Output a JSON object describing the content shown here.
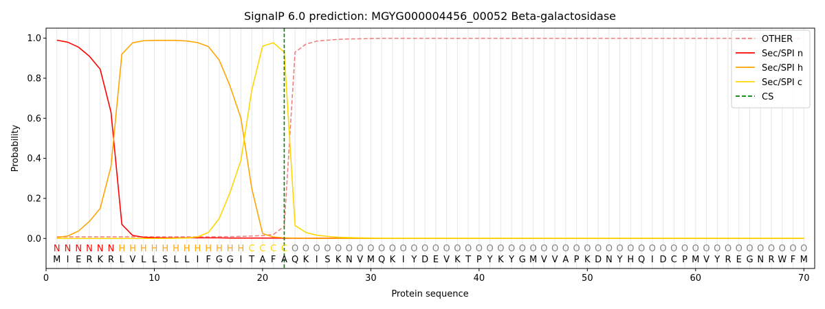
{
  "chart_data": {
    "type": "line",
    "title": "SignalP 6.0 prediction: MGYG000004456_00052 Beta-galactosidase",
    "xlabel": "Protein sequence",
    "ylabel": "Probability",
    "xlim": [
      0,
      71
    ],
    "ylim": [
      -0.15,
      1.05
    ],
    "xticks": [
      0,
      10,
      20,
      30,
      40,
      50,
      60,
      70
    ],
    "yticks": [
      0.0,
      0.2,
      0.4,
      0.6,
      0.8,
      1.0
    ],
    "ytick_labels": [
      "0.0",
      "0.2",
      "0.4",
      "0.6",
      "0.8",
      "1.0"
    ],
    "grid": "vertical lines at each residue",
    "legend_position": "top-right",
    "sequence": [
      "M",
      "I",
      "E",
      "R",
      "K",
      "R",
      "L",
      "V",
      "L",
      "L",
      "S",
      "L",
      "L",
      "I",
      "F",
      "G",
      "G",
      "I",
      "T",
      "A",
      "F",
      "A",
      "Q",
      "K",
      "I",
      "S",
      "K",
      "N",
      "V",
      "M",
      "Q",
      "K",
      "I",
      "Y",
      "D",
      "E",
      "V",
      "K",
      "T",
      "P",
      "Y",
      "K",
      "Y",
      "G",
      "M",
      "V",
      "V",
      "A",
      "P",
      "K",
      "D",
      "N",
      "Y",
      "H",
      "Q",
      "I",
      "D",
      "C",
      "P",
      "M",
      "V",
      "Y",
      "R",
      "E",
      "G",
      "N",
      "R",
      "W",
      "F",
      "M"
    ],
    "region_labels": [
      "N",
      "N",
      "N",
      "N",
      "N",
      "N",
      "H",
      "H",
      "H",
      "H",
      "H",
      "H",
      "H",
      "H",
      "H",
      "H",
      "H",
      "H",
      "C",
      "C",
      "C",
      "C",
      "O",
      "O",
      "O",
      "O",
      "O",
      "O",
      "O",
      "O",
      "O",
      "O",
      "O",
      "O",
      "O",
      "O",
      "O",
      "O",
      "O",
      "O",
      "O",
      "O",
      "O",
      "O",
      "O",
      "O",
      "O",
      "O",
      "O",
      "O",
      "O",
      "O",
      "O",
      "O",
      "O",
      "O",
      "O",
      "O",
      "O",
      "O",
      "O",
      "O",
      "O",
      "O",
      "O",
      "O",
      "O",
      "O",
      "O",
      "O"
    ],
    "region_colors": {
      "N": "#ff0000",
      "H": "#ffa500",
      "C": "#ffd700",
      "O": "#808080"
    },
    "series": [
      {
        "name": "OTHER",
        "color": "#f08080",
        "style": "dashed",
        "values": [
          0.008,
          0.008,
          0.008,
          0.008,
          0.008,
          0.008,
          0.008,
          0.008,
          0.008,
          0.008,
          0.008,
          0.008,
          0.008,
          0.008,
          0.008,
          0.009,
          0.009,
          0.01,
          0.012,
          0.014,
          0.02,
          0.06,
          0.93,
          0.97,
          0.985,
          0.99,
          0.994,
          0.996,
          0.997,
          0.998,
          0.999,
          0.999,
          0.999,
          0.999,
          0.999,
          0.999,
          0.999,
          0.999,
          0.999,
          0.999,
          0.999,
          0.999,
          0.999,
          0.999,
          0.999,
          0.999,
          0.999,
          0.999,
          0.999,
          0.999,
          0.999,
          0.999,
          0.999,
          0.999,
          0.999,
          0.999,
          0.999,
          0.999,
          0.999,
          0.999,
          0.999,
          0.999,
          0.999,
          0.999,
          0.999,
          0.999,
          0.999,
          0.999,
          0.999,
          0.999
        ]
      },
      {
        "name": "Sec/SPI n",
        "color": "#ff0000",
        "style": "solid",
        "values": [
          0.99,
          0.98,
          0.955,
          0.91,
          0.845,
          0.63,
          0.07,
          0.015,
          0.006,
          0.004,
          0.003,
          0.003,
          0.003,
          0.003,
          0.003,
          0.003,
          0.002,
          0.002,
          0.002,
          0.002,
          0.002,
          0.001,
          0.001,
          0.001,
          0.001,
          0.001,
          0.001,
          0.001,
          0.0,
          0.0,
          0.0,
          0.0,
          0.0,
          0.0,
          0.0,
          0.0,
          0.0,
          0.0,
          0.0,
          0.0,
          0.0,
          0.0,
          0.0,
          0.0,
          0.0,
          0.0,
          0.0,
          0.0,
          0.0,
          0.0,
          0.0,
          0.0,
          0.0,
          0.0,
          0.0,
          0.0,
          0.0,
          0.0,
          0.0,
          0.0,
          0.0,
          0.0,
          0.0,
          0.0,
          0.0,
          0.0,
          0.0,
          0.0,
          0.0,
          0.0
        ]
      },
      {
        "name": "Sec/SPI h",
        "color": "#ffa500",
        "style": "solid",
        "values": [
          0.005,
          0.012,
          0.037,
          0.085,
          0.15,
          0.36,
          0.92,
          0.977,
          0.987,
          0.989,
          0.989,
          0.989,
          0.986,
          0.978,
          0.958,
          0.89,
          0.76,
          0.6,
          0.25,
          0.025,
          0.007,
          0.003,
          0.001,
          0.001,
          0.0,
          0.0,
          0.0,
          0.0,
          0.0,
          0.0,
          0.0,
          0.0,
          0.0,
          0.0,
          0.0,
          0.0,
          0.0,
          0.0,
          0.0,
          0.0,
          0.0,
          0.0,
          0.0,
          0.0,
          0.0,
          0.0,
          0.0,
          0.0,
          0.0,
          0.0,
          0.0,
          0.0,
          0.0,
          0.0,
          0.0,
          0.0,
          0.0,
          0.0,
          0.0,
          0.0,
          0.0,
          0.0,
          0.0,
          0.0,
          0.0,
          0.0,
          0.0,
          0.0,
          0.0,
          0.0
        ]
      },
      {
        "name": "Sec/SPI c",
        "color": "#ffd700",
        "style": "solid",
        "values": [
          0.0,
          0.0,
          0.0,
          0.0,
          0.0,
          0.0,
          0.0,
          0.0,
          0.0,
          0.0,
          0.0,
          0.001,
          0.002,
          0.008,
          0.03,
          0.1,
          0.23,
          0.39,
          0.74,
          0.96,
          0.977,
          0.93,
          0.065,
          0.03,
          0.016,
          0.01,
          0.006,
          0.004,
          0.003,
          0.002,
          0.001,
          0.001,
          0.001,
          0.001,
          0.001,
          0.001,
          0.001,
          0.001,
          0.001,
          0.001,
          0.001,
          0.001,
          0.001,
          0.001,
          0.001,
          0.001,
          0.001,
          0.001,
          0.001,
          0.001,
          0.001,
          0.001,
          0.001,
          0.001,
          0.001,
          0.001,
          0.001,
          0.001,
          0.001,
          0.001,
          0.001,
          0.001,
          0.001,
          0.001,
          0.001,
          0.001,
          0.001,
          0.001,
          0.001,
          0.001
        ]
      }
    ],
    "cs": {
      "name": "CS",
      "x": 22,
      "color": "#008000",
      "style": "dashed"
    }
  }
}
